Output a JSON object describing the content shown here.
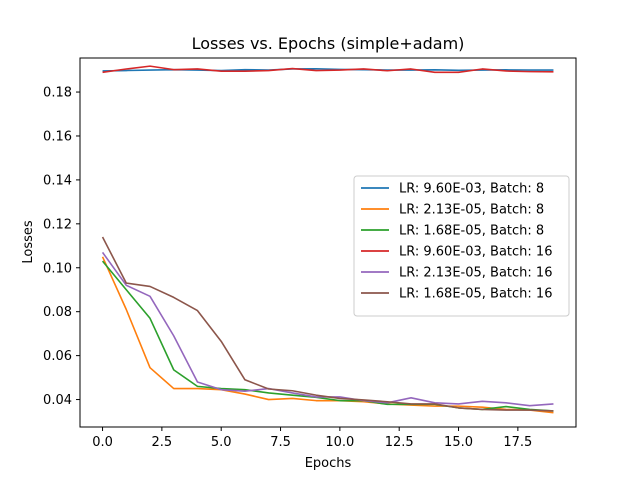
{
  "chart_data": {
    "type": "line",
    "title": "Losses vs. Epochs (simple+adam)",
    "xlabel": "Epochs",
    "ylabel": "Losses",
    "xlim": [
      -0.95,
      19.95
    ],
    "ylim": [
      0.0275,
      0.1955
    ],
    "xticks": [
      0.0,
      2.5,
      5.0,
      7.5,
      10.0,
      12.5,
      15.0,
      17.5
    ],
    "xtick_labels": [
      "0.0",
      "2.5",
      "5.0",
      "7.5",
      "10.0",
      "12.5",
      "15.0",
      "17.5"
    ],
    "yticks": [
      0.04,
      0.06,
      0.08,
      0.1,
      0.12,
      0.14,
      0.16,
      0.18
    ],
    "ytick_labels": [
      "0.04",
      "0.06",
      "0.08",
      "0.10",
      "0.12",
      "0.14",
      "0.16",
      "0.18"
    ],
    "grid": false,
    "legend_position": "right",
    "x": [
      0,
      1,
      2,
      3,
      4,
      5,
      6,
      7,
      8,
      9,
      10,
      11,
      12,
      13,
      14,
      15,
      16,
      17,
      18,
      19
    ],
    "series": [
      {
        "name": "LR: 9.60E-03, Batch: 8",
        "color": "#1f77b4",
        "values": [
          0.1896,
          0.1898,
          0.19,
          0.1902,
          0.19,
          0.1898,
          0.1902,
          0.19,
          0.1905,
          0.1906,
          0.1903,
          0.1902,
          0.19,
          0.19,
          0.1901,
          0.1899,
          0.19,
          0.1901,
          0.19,
          0.19
        ]
      },
      {
        "name": "LR: 2.13E-05, Batch: 8",
        "color": "#ff7f0e",
        "values": [
          0.105,
          0.081,
          0.0545,
          0.045,
          0.045,
          0.0445,
          0.0425,
          0.04,
          0.0405,
          0.0395,
          0.0395,
          0.039,
          0.038,
          0.0375,
          0.037,
          0.037,
          0.0365,
          0.0355,
          0.0352,
          0.034
        ]
      },
      {
        "name": "LR: 1.68E-05, Batch: 8",
        "color": "#2ca02c",
        "values": [
          0.103,
          0.09,
          0.077,
          0.0535,
          0.046,
          0.045,
          0.0445,
          0.043,
          0.042,
          0.041,
          0.0395,
          0.0395,
          0.0378,
          0.0378,
          0.0378,
          0.0362,
          0.0355,
          0.0368,
          0.0355,
          0.0348
        ]
      },
      {
        "name": "LR: 9.60E-03, Batch: 16",
        "color": "#d62728",
        "values": [
          0.189,
          0.1905,
          0.1918,
          0.1902,
          0.1905,
          0.1895,
          0.1895,
          0.1898,
          0.1907,
          0.1898,
          0.19,
          0.1905,
          0.1897,
          0.1905,
          0.189,
          0.189,
          0.1905,
          0.1896,
          0.1893,
          0.1892
        ]
      },
      {
        "name": "LR: 2.13E-05, Batch: 16",
        "color": "#9467bd",
        "values": [
          0.107,
          0.092,
          0.087,
          0.069,
          0.048,
          0.0445,
          0.0438,
          0.045,
          0.043,
          0.0412,
          0.0412,
          0.0395,
          0.0385,
          0.0408,
          0.0385,
          0.038,
          0.0392,
          0.0385,
          0.0372,
          0.038
        ]
      },
      {
        "name": "LR: 1.68E-05, Batch: 16",
        "color": "#8c564b",
        "values": [
          0.114,
          0.093,
          0.0915,
          0.0865,
          0.0805,
          0.0665,
          0.049,
          0.0448,
          0.044,
          0.042,
          0.0405,
          0.0398,
          0.039,
          0.038,
          0.038,
          0.0362,
          0.0355,
          0.0352,
          0.0352,
          0.0348
        ]
      }
    ]
  }
}
